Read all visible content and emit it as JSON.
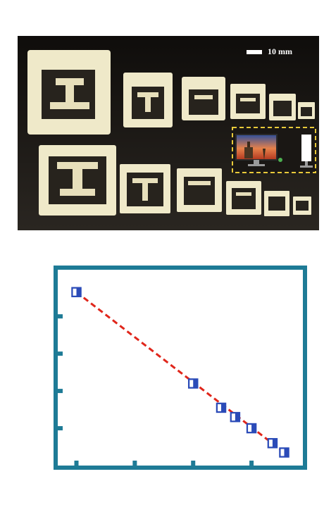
{
  "photo": {
    "scale_label": "10 mm",
    "description_icons": [
      "monitor-icon",
      "phone-icon"
    ],
    "colors": {
      "background": "#151310",
      "specimen": "#efe9c9",
      "highlight_box": "#e8c93a"
    },
    "rows": [
      {
        "name": "top-row",
        "count": 6
      },
      {
        "name": "bottom-row",
        "count": 6
      }
    ]
  },
  "chart_data": {
    "type": "scatter",
    "title": "",
    "xlabel": "",
    "ylabel": "",
    "xlim": [
      0,
      10.5
    ],
    "ylim": [
      0,
      10.5
    ],
    "grid": false,
    "frame_color": "#1e7b96",
    "marker_colors": {
      "fill": "#2b4bb8",
      "edge": "#2b4bb8",
      "half": "#ffffff"
    },
    "fit_color": "#e0261b",
    "series": [
      {
        "points": [
          {
            "x": 0.8,
            "y": 9.3
          },
          {
            "x": 5.8,
            "y": 4.4
          },
          {
            "x": 7.0,
            "y": 3.1
          },
          {
            "x": 7.6,
            "y": 2.6
          },
          {
            "x": 8.3,
            "y": 2.0
          },
          {
            "x": 9.2,
            "y": 1.2
          },
          {
            "x": 9.7,
            "y": 0.7
          }
        ]
      }
    ],
    "fit_line": {
      "x": [
        0.8,
        9.7
      ],
      "y": [
        9.3,
        0.7
      ]
    },
    "x_ticks": [
      0.8,
      3.3,
      5.8,
      8.3
    ],
    "y_ticks": [
      2.0,
      4.0,
      6.0,
      8.0
    ]
  }
}
